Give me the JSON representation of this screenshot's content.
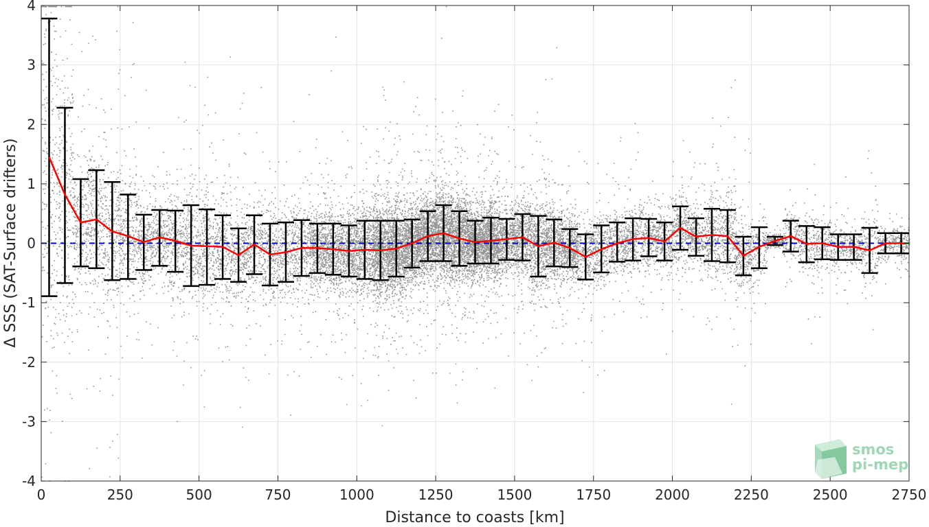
{
  "chart_data": {
    "type": "scatter",
    "title": "",
    "xlabel": "Distance to coasts [km]",
    "ylabel": "Δ SSS (SAT-Surface drifters)",
    "xlim": [
      0,
      2750
    ],
    "ylim": [
      -4,
      4
    ],
    "x_ticks": [
      0,
      250,
      500,
      750,
      1000,
      1250,
      1500,
      1750,
      2000,
      2250,
      2500,
      2750
    ],
    "y_ticks": [
      -4,
      -3,
      -2,
      -1,
      0,
      1,
      2,
      3,
      4
    ],
    "grid": true,
    "legend": "none",
    "reference_line": {
      "y": 0,
      "style": "dashed",
      "color": "#0000cc"
    },
    "colors": {
      "scatter": "#808080",
      "mean_line": "#ff0000",
      "error_bars": "#000000",
      "zero_line": "#0000cc"
    },
    "bins": {
      "x": [
        25,
        75,
        125,
        175,
        225,
        275,
        325,
        375,
        425,
        475,
        525,
        575,
        625,
        675,
        725,
        775,
        825,
        875,
        925,
        975,
        1025,
        1075,
        1125,
        1175,
        1225,
        1275,
        1325,
        1375,
        1425,
        1475,
        1525,
        1575,
        1625,
        1675,
        1725,
        1775,
        1825,
        1875,
        1925,
        1975,
        2025,
        2075,
        2125,
        2175,
        2225,
        2275,
        2325,
        2375,
        2425,
        2475,
        2525,
        2575,
        2625,
        2675,
        2725
      ],
      "mean": [
        1.45,
        0.82,
        0.35,
        0.4,
        0.2,
        0.12,
        0.02,
        0.1,
        0.04,
        -0.04,
        -0.05,
        -0.06,
        -0.2,
        -0.02,
        -0.19,
        -0.15,
        -0.08,
        -0.08,
        -0.1,
        -0.13,
        -0.11,
        -0.12,
        -0.09,
        0.0,
        0.12,
        0.17,
        0.08,
        0.02,
        0.04,
        0.07,
        0.1,
        -0.05,
        0.01,
        -0.08,
        -0.23,
        -0.1,
        0.0,
        0.07,
        0.09,
        0.03,
        0.26,
        0.11,
        0.14,
        0.12,
        -0.21,
        -0.06,
        0.04,
        0.12,
        -0.01,
        0.0,
        -0.06,
        -0.06,
        -0.12,
        0.0,
        0.0
      ],
      "upper": [
        3.78,
        2.28,
        1.08,
        1.23,
        1.03,
        0.82,
        0.48,
        0.56,
        0.55,
        0.64,
        0.57,
        0.47,
        0.25,
        0.47,
        0.33,
        0.35,
        0.39,
        0.33,
        0.33,
        0.3,
        0.38,
        0.38,
        0.38,
        0.4,
        0.54,
        0.64,
        0.54,
        0.38,
        0.43,
        0.41,
        0.49,
        0.46,
        0.4,
        0.24,
        0.15,
        0.3,
        0.35,
        0.42,
        0.41,
        0.35,
        0.62,
        0.42,
        0.58,
        0.56,
        0.11,
        0.27,
        0.11,
        0.38,
        0.29,
        0.27,
        0.15,
        0.15,
        0.26,
        0.17,
        0.17
      ],
      "lower": [
        -0.89,
        -0.67,
        -0.39,
        -0.42,
        -0.62,
        -0.6,
        -0.45,
        -0.38,
        -0.48,
        -0.72,
        -0.7,
        -0.6,
        -0.65,
        -0.52,
        -0.71,
        -0.65,
        -0.55,
        -0.5,
        -0.53,
        -0.56,
        -0.6,
        -0.62,
        -0.56,
        -0.41,
        -0.3,
        -0.3,
        -0.38,
        -0.34,
        -0.34,
        -0.28,
        -0.29,
        -0.56,
        -0.39,
        -0.4,
        -0.61,
        -0.49,
        -0.31,
        -0.29,
        -0.22,
        -0.29,
        -0.11,
        -0.21,
        -0.3,
        -0.32,
        -0.54,
        -0.42,
        -0.03,
        -0.14,
        -0.32,
        -0.27,
        -0.28,
        -0.28,
        -0.5,
        -0.17,
        -0.17
      ]
    }
  },
  "watermark": {
    "line1": "smos",
    "line2": "pi-mep"
  }
}
